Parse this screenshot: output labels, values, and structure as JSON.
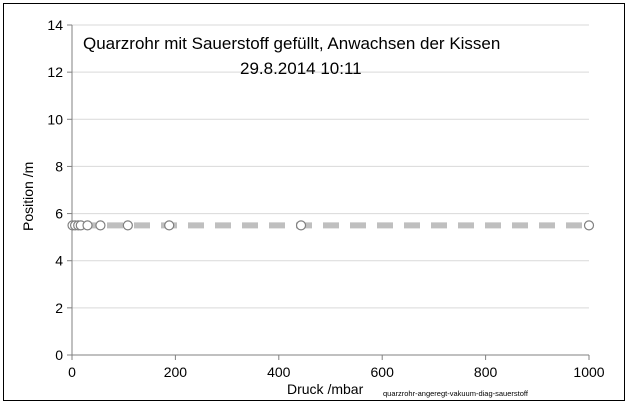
{
  "chart_data": {
    "type": "scatter",
    "title": "Quarzrohr mit Sauerstoff gefüllt, Anwachsen der Kissen",
    "subtitle": "29.8.2014   10:11",
    "xlabel": "Druck /mbar",
    "ylabel": "Position /m",
    "source_note": "quarzrohr-angeregt-vakuum-diag-sauerstoff",
    "xlim": [
      0,
      1000
    ],
    "ylim": [
      0,
      14
    ],
    "x_ticks": [
      0,
      200,
      400,
      600,
      800,
      1000
    ],
    "y_ticks": [
      0,
      2,
      4,
      6,
      8,
      10,
      12,
      14
    ],
    "grid": "horizontal",
    "series": [
      {
        "marker": "open-circle",
        "color": "#808080",
        "points": [
          {
            "x": 1,
            "y": 5.5
          },
          {
            "x": 6,
            "y": 5.5
          },
          {
            "x": 12,
            "y": 5.5
          },
          {
            "x": 17,
            "y": 5.5
          },
          {
            "x": 30,
            "y": 5.5
          },
          {
            "x": 55,
            "y": 5.5
          },
          {
            "x": 108,
            "y": 5.5
          },
          {
            "x": 188,
            "y": 5.5
          },
          {
            "x": 443,
            "y": 5.5
          },
          {
            "x": 1000,
            "y": 5.5
          }
        ]
      }
    ],
    "reference_line": {
      "y": 5.5,
      "style": "dashed",
      "color": "#bfbfbf"
    }
  }
}
